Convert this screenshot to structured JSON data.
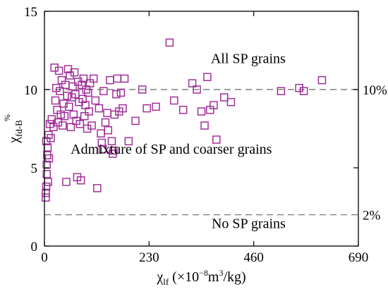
{
  "chart_data": {
    "type": "scatter",
    "title": "",
    "xlabel": {
      "symbol": "χ",
      "subscript": "lf",
      "unit_text": " (×10",
      "exp1": "−8",
      "mid": "m",
      "exp2": "3",
      "end": "/kg)"
    },
    "ylabel": {
      "symbol": "χ",
      "subscript": "fd-B",
      "superscript": "%"
    },
    "xlim": [
      0,
      690
    ],
    "ylim": [
      0,
      15
    ],
    "x_ticks": [
      0,
      230,
      460,
      690
    ],
    "y_ticks": [
      0,
      5,
      10,
      15
    ],
    "grid": false,
    "marker": {
      "shape": "open-square",
      "color": "#a0309a"
    },
    "reference_lines": [
      {
        "y": 10,
        "label": "10%",
        "style": "dashed",
        "color": "#808080"
      },
      {
        "y": 2,
        "label": "2%",
        "style": "dashed",
        "color": "#808080"
      }
    ],
    "annotations": [
      {
        "text": "All SP grains",
        "x": 530,
        "y": 11.7
      },
      {
        "text": "Admixture of SP and coarser grains",
        "x": 500,
        "y": 5.9
      },
      {
        "text": "No SP grains",
        "x": 530,
        "y": 1.15
      }
    ],
    "series": [
      {
        "points": [
          [
            3,
            3.1
          ],
          [
            3,
            3.4
          ],
          [
            4,
            3.8
          ],
          [
            5,
            4.6
          ],
          [
            5,
            5.2
          ],
          [
            6,
            5.8
          ],
          [
            7,
            6.3
          ],
          [
            4,
            6.7
          ],
          [
            9,
            7.1
          ],
          [
            8,
            4.1
          ],
          [
            10,
            5.6
          ],
          [
            12,
            7.8
          ],
          [
            14,
            6.9
          ],
          [
            16,
            8.1
          ],
          [
            20,
            7.6
          ],
          [
            22,
            11.4
          ],
          [
            24,
            9.3
          ],
          [
            26,
            10.1
          ],
          [
            28,
            8.7
          ],
          [
            30,
            7.9
          ],
          [
            32,
            11.2
          ],
          [
            34,
            9.9
          ],
          [
            36,
            8.4
          ],
          [
            38,
            10.6
          ],
          [
            40,
            7.7
          ],
          [
            42,
            9.1
          ],
          [
            44,
            8.3
          ],
          [
            46,
            10.3
          ],
          [
            48,
            4.1
          ],
          [
            50,
            9.6
          ],
          [
            52,
            11.3
          ],
          [
            54,
            8.9
          ],
          [
            56,
            10.9
          ],
          [
            58,
            7.6
          ],
          [
            60,
            9.5
          ],
          [
            62,
            10.2
          ],
          [
            64,
            8.4
          ],
          [
            66,
            11.1
          ],
          [
            68,
            9.7
          ],
          [
            70,
            8.0
          ],
          [
            72,
            4.4
          ],
          [
            74,
            10.5
          ],
          [
            76,
            9.2
          ],
          [
            78,
            7.8
          ],
          [
            80,
            4.2
          ],
          [
            82,
            10.3
          ],
          [
            84,
            9.4
          ],
          [
            86,
            10.7
          ],
          [
            88,
            8.3
          ],
          [
            90,
            9.0
          ],
          [
            92,
            10.0
          ],
          [
            94,
            7.5
          ],
          [
            96,
            9.8
          ],
          [
            98,
            8.6
          ],
          [
            100,
            10.4
          ],
          [
            104,
            7.7
          ],
          [
            108,
            10.7
          ],
          [
            112,
            9.3
          ],
          [
            116,
            3.7
          ],
          [
            120,
            8.8
          ],
          [
            124,
            7.2
          ],
          [
            126,
            6.6
          ],
          [
            128,
            6.2
          ],
          [
            130,
            9.9
          ],
          [
            134,
            7.9
          ],
          [
            138,
            8.5
          ],
          [
            140,
            7.4
          ],
          [
            144,
            10.6
          ],
          [
            148,
            6.7
          ],
          [
            150,
            5.9
          ],
          [
            152,
            6.1
          ],
          [
            154,
            8.4
          ],
          [
            158,
            9.7
          ],
          [
            160,
            10.7
          ],
          [
            164,
            8.6
          ],
          [
            168,
            9.8
          ],
          [
            172,
            8.8
          ],
          [
            176,
            10.7
          ],
          [
            185,
            6.7
          ],
          [
            200,
            8.0
          ],
          [
            215,
            10.0
          ],
          [
            225,
            8.8
          ],
          [
            245,
            8.9
          ],
          [
            275,
            13.0
          ],
          [
            285,
            9.3
          ],
          [
            305,
            8.7
          ],
          [
            325,
            10.4
          ],
          [
            335,
            10.0
          ],
          [
            345,
            8.6
          ],
          [
            352,
            7.7
          ],
          [
            358,
            10.8
          ],
          [
            364,
            8.7
          ],
          [
            372,
            9.0
          ],
          [
            378,
            6.8
          ],
          [
            395,
            9.5
          ],
          [
            410,
            9.2
          ],
          [
            520,
            9.9
          ],
          [
            560,
            10.1
          ],
          [
            570,
            9.9
          ],
          [
            610,
            10.6
          ]
        ]
      }
    ]
  }
}
